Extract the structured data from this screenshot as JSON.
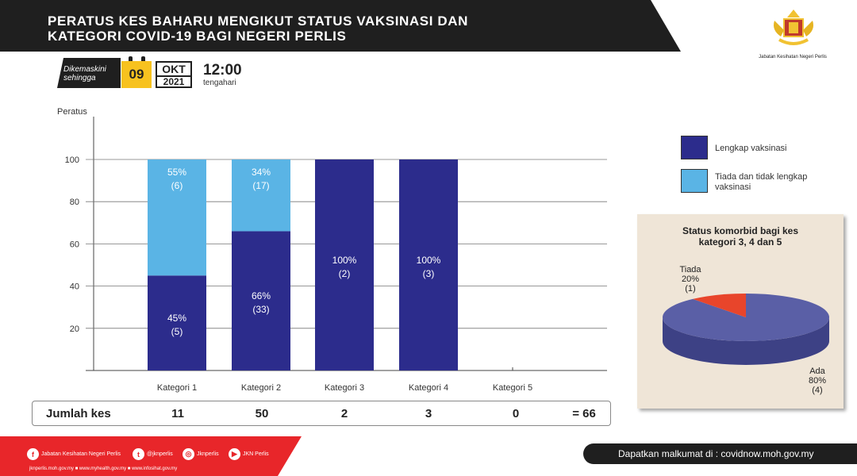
{
  "title": {
    "line1": "PERATUS KES BAHARU MENGIKUT STATUS VAKSINASI  DAN",
    "line2": "KATEGORI COVID-19 BAGI NEGERI PERLIS"
  },
  "department": "Jabatan Kesihatan Negeri Perlis",
  "update": {
    "label_line1": "Dikemaskini",
    "label_line2": "sehingga",
    "day": "09",
    "month": "OKT",
    "year": "2021",
    "time": "12:00",
    "time_label": "tengahari"
  },
  "colors": {
    "complete": "#2c2c8c",
    "incomplete": "#5ab4e5",
    "pie_ada": "#5a5fa6",
    "pie_tiada": "#e8452b",
    "banner": "#1f1f1f",
    "footer_red": "#e8262a"
  },
  "chart_data": [
    {
      "type": "bar",
      "stacked": true,
      "ylabel": "Peratus",
      "ylim": [
        0,
        100
      ],
      "yticks": [
        "20",
        "40",
        "60",
        "80",
        "100"
      ],
      "categories": [
        "Kategori 1",
        "Kategori 2",
        "Kategori 3",
        "Kategori 4",
        "Kategori 5"
      ],
      "series": [
        {
          "name": "Lengkap vaksinasi",
          "values": [
            45,
            66,
            100,
            100,
            0
          ],
          "labels": [
            "45%",
            "66%",
            "100%",
            "100%",
            ""
          ],
          "counts": [
            "(5)",
            "(33)",
            "(2)",
            "(3)",
            ""
          ]
        },
        {
          "name": "Tiada dan tidak lengkap vaksinasi",
          "values": [
            55,
            34,
            0,
            0,
            0
          ],
          "labels": [
            "55%",
            "34%",
            "",
            "",
            ""
          ],
          "counts": [
            "(6)",
            "(17)",
            "",
            "",
            ""
          ]
        }
      ],
      "legend_position": "right"
    },
    {
      "type": "pie",
      "title": "Status komorbid bagi kes kategori 3, 4 dan 5",
      "slices": [
        {
          "name": "Ada",
          "percent_label": "80%",
          "count_label": "(4)",
          "value": 80
        },
        {
          "name": "Tiada",
          "percent_label": "20%",
          "count_label": "(1)",
          "value": 20
        }
      ]
    }
  ],
  "totals": {
    "label": "Jumlah kes",
    "values": [
      "11",
      "50",
      "2",
      "3",
      "0"
    ],
    "sum": "= 66"
  },
  "pie_title": {
    "line1": "Status komorbid bagi kes",
    "line2": "kategori 3, 4 dan 5"
  },
  "legend": {
    "complete": "Lengkap vaksinasi",
    "incomplete_line1": "Tiada dan tidak lengkap",
    "incomplete_line2": "vaksinasi"
  },
  "footer": {
    "social": [
      {
        "icon": "facebook-icon",
        "glyph": "f",
        "text": "Jabatan Kesihatan Negeri Perlis"
      },
      {
        "icon": "twitter-icon",
        "glyph": "t",
        "text": "@jknperlis"
      },
      {
        "icon": "instagram-icon",
        "glyph": "◎",
        "text": "Jknperlis"
      },
      {
        "icon": "youtube-icon",
        "glyph": "▶",
        "text": "JKN Perlis"
      }
    ],
    "links": "jknperlis.moh.gov.my ■ www.myhealth.gov.my ■ www.infosihat.gov.my",
    "info": "Dapatkan malkumat di : covidnow.moh.gov.my"
  }
}
